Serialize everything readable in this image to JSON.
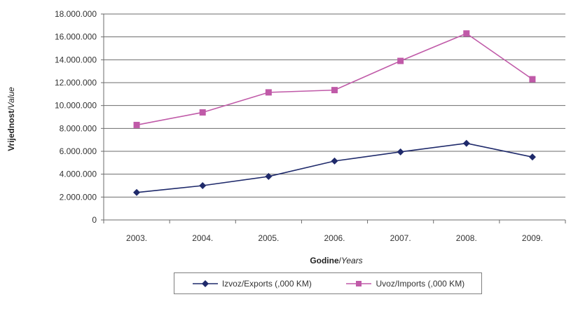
{
  "chart_data": {
    "type": "line",
    "categories": [
      "2003.",
      "2004.",
      "2005.",
      "2006.",
      "2007.",
      "2008.",
      "2009."
    ],
    "series": [
      {
        "name": "Izvoz/Exports (,000 KM)",
        "values": [
          2400000,
          3000000,
          3800000,
          5150000,
          5950000,
          6700000,
          5500000
        ],
        "color": "#1f2a6b",
        "marker": "diamond"
      },
      {
        "name": "Uvoz/Imports (,000 KM)",
        "values": [
          8300000,
          9400000,
          11150000,
          11350000,
          13900000,
          16300000,
          12300000
        ],
        "color": "#c05aa8",
        "marker": "square"
      }
    ],
    "ylim": [
      0,
      18000000
    ],
    "yticks": [
      "0",
      "2.000.000",
      "4.000.000",
      "6.000.000",
      "8.000.000",
      "10.000.000",
      "12.000.000",
      "14.000.000",
      "16.000.000",
      "18.000.000"
    ],
    "ylabel": {
      "main": "Vrijednost",
      "sub": "Value"
    },
    "xlabel": {
      "main": "Godine",
      "sub": "Years"
    },
    "grid": true,
    "legend_position": "bottom"
  }
}
